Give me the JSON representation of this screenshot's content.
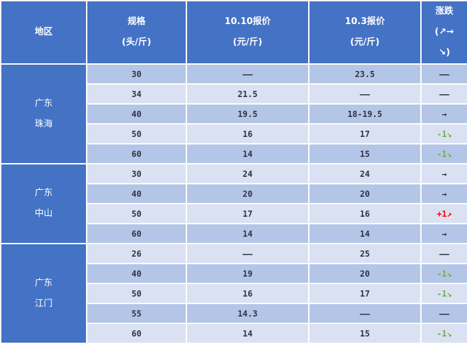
{
  "header": {
    "region": "地区",
    "spec": [
      "规格",
      "(头/斤)"
    ],
    "price_new": [
      "10.10报价",
      "(元/斤)"
    ],
    "price_old": [
      "10.3报价",
      "(元/斤)"
    ],
    "change": [
      "涨跌",
      "(↗→",
      "↘)"
    ]
  },
  "colors": {
    "header": "#4472c4",
    "row_dark": "#b4c6e7",
    "row_light": "#d9e1f2",
    "down": "#70ad47",
    "up": "#ff0000"
  },
  "groups": [
    {
      "region": [
        "广东",
        "珠海"
      ],
      "rows": [
        {
          "spec": "30",
          "new": "——",
          "old": "23.5",
          "change": "——",
          "trend": "none"
        },
        {
          "spec": "34",
          "new": "21.5",
          "old": "——",
          "change": "——",
          "trend": "none"
        },
        {
          "spec": "40",
          "new": "19.5",
          "old": "18-19.5",
          "change": "→",
          "trend": "flat"
        },
        {
          "spec": "50",
          "new": "16",
          "old": "17",
          "change": "-1↘",
          "trend": "down"
        },
        {
          "spec": "60",
          "new": "14",
          "old": "15",
          "change": "-1↘",
          "trend": "down"
        }
      ]
    },
    {
      "region": [
        "广东",
        "中山"
      ],
      "rows": [
        {
          "spec": "30",
          "new": "24",
          "old": "24",
          "change": "→",
          "trend": "flat"
        },
        {
          "spec": "40",
          "new": "20",
          "old": "20",
          "change": "→",
          "trend": "flat"
        },
        {
          "spec": "50",
          "new": "17",
          "old": "16",
          "change": "+1↗",
          "trend": "up"
        },
        {
          "spec": "60",
          "new": "14",
          "old": "14",
          "change": "→",
          "trend": "flat"
        }
      ]
    },
    {
      "region": [
        "广东",
        "江门"
      ],
      "rows": [
        {
          "spec": "26",
          "new": "——",
          "old": "25",
          "change": "——",
          "trend": "none"
        },
        {
          "spec": "40",
          "new": "19",
          "old": "20",
          "change": "-1↘",
          "trend": "down"
        },
        {
          "spec": "50",
          "new": "16",
          "old": "17",
          "change": "-1↘",
          "trend": "down"
        },
        {
          "spec": "55",
          "new": "14.3",
          "old": "——",
          "change": "——",
          "trend": "none"
        },
        {
          "spec": "60",
          "new": "14",
          "old": "15",
          "change": "-1↘",
          "trend": "down"
        }
      ]
    }
  ]
}
